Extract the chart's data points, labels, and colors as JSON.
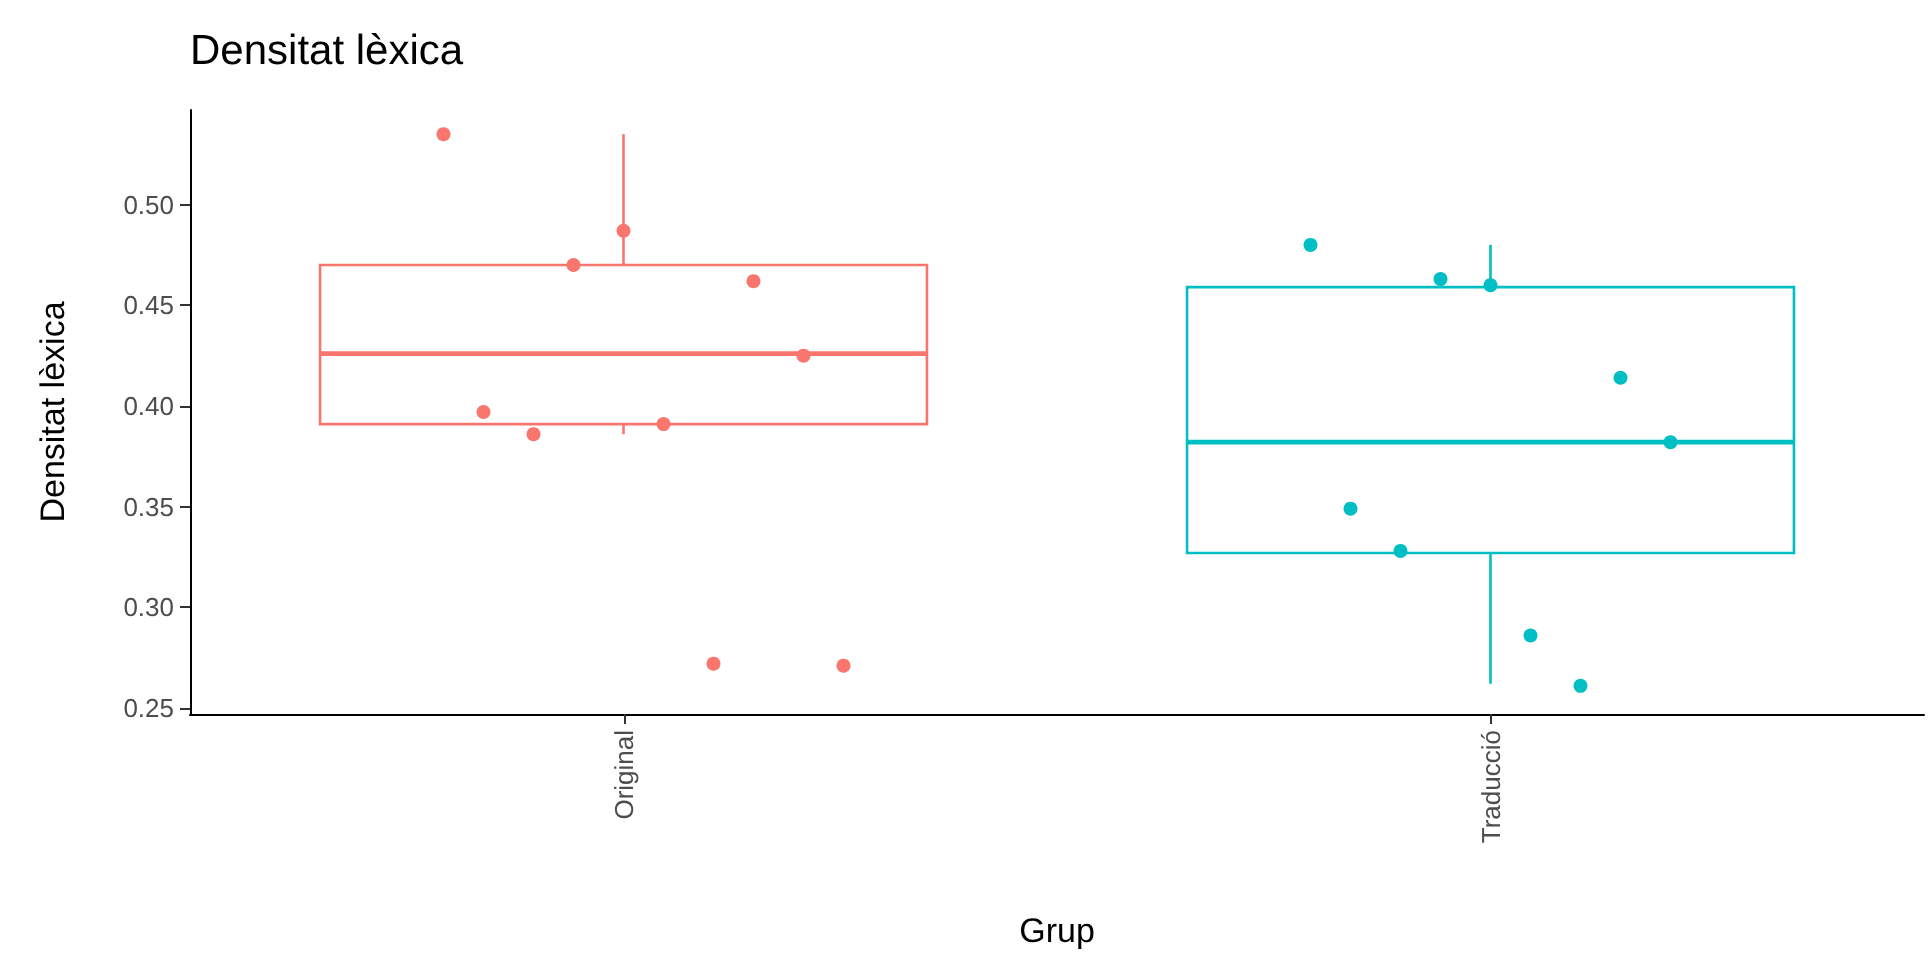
{
  "chart_data": {
    "type": "box",
    "title": "Densitat lèxica",
    "xlabel": "Grup",
    "ylabel": "Densitat lèxica",
    "categories": [
      "Original",
      "Traducció"
    ],
    "colors": [
      "#f8766d",
      "#00bfc4"
    ],
    "boxes": [
      {
        "low": 0.386,
        "q1": 0.391,
        "median": 0.426,
        "q3": 0.47,
        "high": 0.535
      },
      {
        "low": 0.262,
        "q1": 0.327,
        "median": 0.382,
        "q3": 0.459,
        "high": 0.48
      }
    ],
    "series": [
      {
        "type": "scatter",
        "color": "#f8766d",
        "x": [
          "Original",
          "Original",
          "Original",
          "Original",
          "Original",
          "Original",
          "Original",
          "Original",
          "Original",
          "Original"
        ],
        "values": [
          0.535,
          0.47,
          0.487,
          0.462,
          0.425,
          0.397,
          0.386,
          0.391,
          0.272,
          0.271
        ]
      },
      {
        "type": "scatter",
        "color": "#00bfc4",
        "x": [
          "Traducció",
          "Traducció",
          "Traducció",
          "Traducció",
          "Traducció",
          "Traducció",
          "Traducció",
          "Traducció",
          "Traducció"
        ],
        "values": [
          0.48,
          0.463,
          0.46,
          0.414,
          0.382,
          0.349,
          0.328,
          0.286,
          0.261
        ]
      }
    ],
    "ylim": [
      0.247,
      0.547
    ],
    "yticks": [
      {
        "value": 0.25,
        "label": "0.25"
      },
      {
        "value": 0.3,
        "label": "0.30"
      },
      {
        "value": 0.35,
        "label": "0.35"
      },
      {
        "value": 0.4,
        "label": "0.40"
      },
      {
        "value": 0.45,
        "label": "0.45"
      },
      {
        "value": 0.5,
        "label": "0.50"
      }
    ],
    "grid": false,
    "marker": "circle"
  }
}
